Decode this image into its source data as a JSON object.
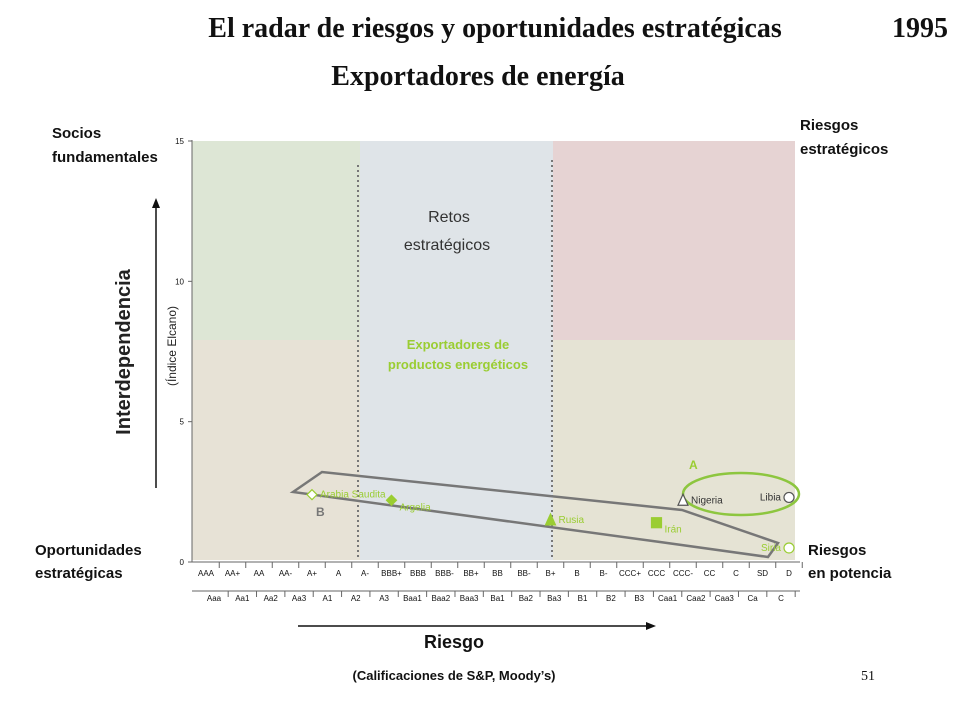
{
  "slide": {
    "title": "El radar de riesgos y oportunidades estratégicas",
    "year": "1995",
    "subtitle": "Exportadores de energía",
    "page_number": "51"
  },
  "regions": {
    "socios": [
      "Socios",
      "fundamentales"
    ],
    "riesgos_estrategicos": [
      "Riesgos",
      "estratégicos"
    ],
    "retos": [
      "Retos",
      "estratégicos"
    ],
    "oportunidades": [
      "Oportunidades",
      "estratégicas"
    ],
    "riesgos_potencia": [
      "Riesgos",
      "en potencia"
    ]
  },
  "group_label": [
    "Exportadores de",
    "productos energéticos"
  ],
  "polygon_labels": {
    "a": "A",
    "b": "B"
  },
  "colors": {
    "green": "#9acd32",
    "socios_bg": "#dde6d5",
    "riesgos_bg": "#e6d3d3",
    "retos_bg": "#dfe4e8",
    "lower_bg": "#e5e3d4",
    "lower_left_bg": "#e7e2d6",
    "polygon": "#777777",
    "ellipse": "#8dc63f"
  },
  "chart_data": {
    "type": "scatter",
    "title": "El radar de riesgos y oportunidades estratégicas",
    "ylabel": "Interdependencia",
    "ylabel_sub": "(Índice Elcano)",
    "xlabel": "Riesgo",
    "xlabel_sub": "(Calificaciones de S&P, Moody’s)",
    "ylim": [
      0,
      15
    ],
    "yticks": [
      0,
      5,
      10,
      15
    ],
    "x_categories_sp": [
      "AAA",
      "AA+",
      "AA",
      "AA-",
      "A+",
      "A",
      "A-",
      "BBB+",
      "BBB",
      "BBB-",
      "BB+",
      "BB",
      "BB-",
      "B+",
      "B",
      "B-",
      "CCC+",
      "CCC",
      "CCC-",
      "CC",
      "C",
      "SD",
      "D"
    ],
    "x_categories_moodys": [
      "Aaa",
      "Aa1",
      "Aa2",
      "Aa3",
      "A1",
      "A2",
      "A3",
      "Baa1",
      "Baa2",
      "Baa3",
      "Ba1",
      "Ba2",
      "Ba3",
      "B1",
      "B2",
      "B3",
      "Caa1",
      "Caa2",
      "Caa3",
      "Ca",
      "C"
    ],
    "points": [
      {
        "name": "Arabia Saudita",
        "x": "A+",
        "y": 2.4,
        "marker": "diamond-open"
      },
      {
        "name": "Argelia",
        "x": "BBB+",
        "y": 2.2,
        "marker": "diamond-filled"
      },
      {
        "name": "Rusia",
        "x": "B+",
        "y": 1.5,
        "marker": "triangle-filled"
      },
      {
        "name": "Irán",
        "x": "CCC",
        "y": 1.4,
        "marker": "square-filled"
      },
      {
        "name": "Nigeria",
        "x": "CCC-",
        "y": 2.2,
        "marker": "triangle-open"
      },
      {
        "name": "Libia",
        "x": "D",
        "y": 2.3,
        "marker": "circle-open"
      },
      {
        "name": "Siria",
        "x": "D",
        "y": 0.5,
        "marker": "circle-open"
      }
    ]
  }
}
